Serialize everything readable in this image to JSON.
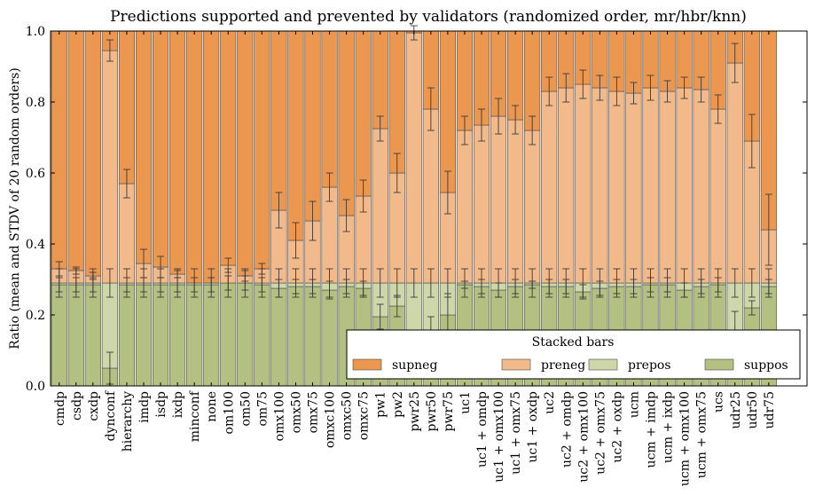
{
  "chart_data": {
    "type": "bar",
    "stacked": true,
    "title": "Predictions supported and prevented by validators (randomized order, mr/hbr/knn)",
    "xlabel": "",
    "ylabel": "Ratio (mean and STDV of 20 random orders)",
    "ylim": [
      0,
      1.0
    ],
    "yticks": [
      "0.0",
      "0.2",
      "0.4",
      "0.6",
      "0.8",
      "1.0"
    ],
    "grid": false,
    "legend": {
      "title": "Stacked bars",
      "placement": "lower-right",
      "entries": [
        "supneg",
        "preneg",
        "prepos",
        "suppos"
      ]
    },
    "colors": {
      "supneg": "#eb974f",
      "preneg": "#f2b98a",
      "prepos": "#cdd7aa",
      "suppos": "#b2c081",
      "edge": "#4a4a4a",
      "errorbar": "#3a3a3a"
    },
    "categories": [
      "cmdp",
      "csdp",
      "cxdp",
      "dynconf",
      "hierarchy",
      "imdp",
      "isdp",
      "ixdp",
      "minconf",
      "none",
      "om100",
      "om50",
      "om75",
      "omx100",
      "omx50",
      "omx75",
      "omxc100",
      "omxc50",
      "omxc75",
      "pw1",
      "pw2",
      "pwr25",
      "pwr50",
      "pwr75",
      "uc1",
      "uc1 + omdp",
      "uc1 + omx100",
      "uc1 + omx75",
      "uc1 + oxdp",
      "uc2",
      "uc2 + omdp",
      "uc2 + omx100",
      "uc2 + omx75",
      "uc2 + oxdp",
      "ucm",
      "ucm + imdp",
      "ucm + ixdp",
      "ucm + omx100",
      "ucm + omx75",
      "ucs",
      "udr25",
      "udr50",
      "udr75"
    ],
    "series": [
      {
        "name": "suppos",
        "values": [
          0.285,
          0.285,
          0.285,
          0.05,
          0.285,
          0.285,
          0.285,
          0.285,
          0.285,
          0.285,
          0.29,
          0.29,
          0.285,
          0.275,
          0.28,
          0.28,
          0.27,
          0.28,
          0.275,
          0.195,
          0.225,
          0.08,
          0.135,
          0.2,
          0.285,
          0.28,
          0.27,
          0.28,
          0.285,
          0.28,
          0.28,
          0.265,
          0.275,
          0.28,
          0.28,
          0.285,
          0.285,
          0.27,
          0.28,
          0.285,
          0.15,
          0.22,
          0.28
        ],
        "err": [
          0.02,
          0.02,
          0.02,
          0.045,
          0.02,
          0.02,
          0.02,
          0.02,
          0.02,
          0.02,
          0.02,
          0.02,
          0.02,
          0.025,
          0.02,
          0.02,
          0.025,
          0.02,
          0.02,
          0.035,
          0.03,
          0.06,
          0.06,
          0.06,
          0.01,
          0.02,
          0.02,
          0.02,
          0.01,
          0.02,
          0.02,
          0.02,
          0.02,
          0.02,
          0.02,
          0.02,
          0.02,
          0.02,
          0.02,
          0.02,
          0.06,
          0.02,
          0.02
        ]
      },
      {
        "name": "prepos",
        "values": [
          0.005,
          0.005,
          0.005,
          0.24,
          0.005,
          0.005,
          0.005,
          0.005,
          0.005,
          0.005,
          0.0,
          0.0,
          0.005,
          0.015,
          0.01,
          0.01,
          0.02,
          0.01,
          0.015,
          0.095,
          0.065,
          0.21,
          0.155,
          0.09,
          0.005,
          0.01,
          0.02,
          0.01,
          0.005,
          0.01,
          0.01,
          0.025,
          0.015,
          0.01,
          0.01,
          0.005,
          0.005,
          0.02,
          0.01,
          0.005,
          0.14,
          0.07,
          0.01
        ],
        "err": [
          0.04,
          0.04,
          0.04,
          0.04,
          0.04,
          0.04,
          0.04,
          0.04,
          0.04,
          0.04,
          0.04,
          0.04,
          0.04,
          0.04,
          0.04,
          0.04,
          0.04,
          0.04,
          0.04,
          0.04,
          0.04,
          0.04,
          0.04,
          0.04,
          0.04,
          0.04,
          0.04,
          0.04,
          0.04,
          0.04,
          0.04,
          0.04,
          0.04,
          0.04,
          0.04,
          0.04,
          0.04,
          0.04,
          0.04,
          0.04,
          0.04,
          0.04,
          0.04
        ]
      },
      {
        "name": "preneg",
        "values": [
          0.04,
          0.035,
          0.02,
          0.655,
          0.28,
          0.055,
          0.045,
          0.025,
          0.0,
          0.0,
          0.05,
          0.02,
          0.04,
          0.205,
          0.12,
          0.175,
          0.27,
          0.19,
          0.245,
          0.435,
          0.31,
          0.705,
          0.49,
          0.255,
          0.43,
          0.445,
          0.47,
          0.46,
          0.43,
          0.54,
          0.55,
          0.56,
          0.55,
          0.54,
          0.535,
          0.55,
          0.54,
          0.55,
          0.545,
          0.49,
          0.62,
          0.4,
          0.15
        ],
        "err": [
          0.02,
          0.01,
          0.01,
          0.03,
          0.04,
          0.04,
          0.03,
          0.01,
          0.0,
          0.0,
          0.02,
          0.015,
          0.015,
          0.05,
          0.05,
          0.055,
          0.04,
          0.045,
          0.045,
          0.035,
          0.055,
          0.02,
          0.06,
          0.06,
          0.04,
          0.045,
          0.05,
          0.04,
          0.04,
          0.04,
          0.04,
          0.04,
          0.035,
          0.04,
          0.03,
          0.035,
          0.03,
          0.03,
          0.035,
          0.04,
          0.055,
          0.075,
          0.1
        ]
      },
      {
        "name": "supneg",
        "values": [
          0.67,
          0.675,
          0.69,
          0.055,
          0.43,
          0.655,
          0.665,
          0.685,
          0.71,
          0.71,
          0.66,
          0.69,
          0.67,
          0.505,
          0.59,
          0.535,
          0.44,
          0.52,
          0.465,
          0.275,
          0.4,
          0.005,
          0.22,
          0.455,
          0.28,
          0.265,
          0.24,
          0.25,
          0.28,
          0.17,
          0.16,
          0.15,
          0.16,
          0.17,
          0.175,
          0.16,
          0.17,
          0.16,
          0.165,
          0.22,
          0.09,
          0.31,
          0.56
        ],
        "err": [
          0,
          0,
          0,
          0,
          0,
          0,
          0,
          0,
          0,
          0,
          0,
          0,
          0,
          0,
          0,
          0,
          0,
          0,
          0,
          0,
          0,
          0,
          0,
          0,
          0,
          0,
          0,
          0,
          0,
          0,
          0,
          0,
          0,
          0,
          0,
          0,
          0,
          0,
          0,
          0,
          0,
          0,
          0
        ]
      }
    ]
  }
}
